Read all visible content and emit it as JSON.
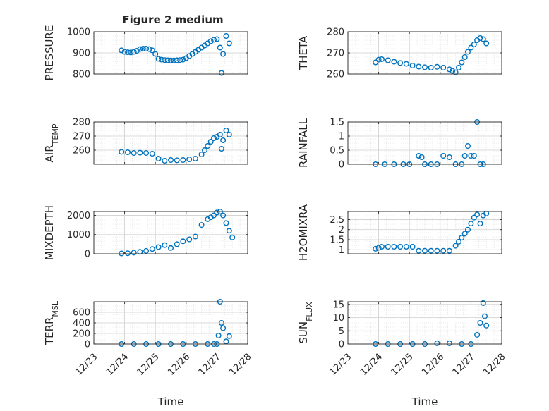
{
  "figure": {
    "title": "Figure 2 medium",
    "xlabel_left": "Time",
    "xlabel_right": "Time",
    "marker_color": "#0072BD",
    "x_tick_labels": [
      "12/23",
      "12/24",
      "12/25",
      "12/26",
      "12/27",
      "12/28"
    ]
  },
  "chart_data": [
    {
      "id": "pressure",
      "type": "scatter",
      "ylabel": "PRESSURE",
      "ylim": [
        800,
        1000
      ],
      "yticks": [
        800,
        900,
        1000
      ],
      "x": [
        23.9,
        24.0,
        24.1,
        24.2,
        24.3,
        24.4,
        24.5,
        24.6,
        24.7,
        24.8,
        24.9,
        25.0,
        25.1,
        25.2,
        25.3,
        25.4,
        25.5,
        25.6,
        25.7,
        25.8,
        25.9,
        26.0,
        26.1,
        26.2,
        26.3,
        26.4,
        26.5,
        26.6,
        26.7,
        26.8,
        26.9,
        27.0,
        27.1,
        27.15,
        27.2,
        27.3,
        27.4
      ],
      "y": [
        912,
        905,
        903,
        902,
        905,
        910,
        918,
        920,
        920,
        918,
        912,
        895,
        872,
        868,
        866,
        865,
        864,
        864,
        865,
        866,
        868,
        875,
        885,
        895,
        905,
        915,
        925,
        935,
        945,
        955,
        962,
        965,
        925,
        805,
        895,
        980,
        945
      ]
    },
    {
      "id": "theta",
      "type": "scatter",
      "ylabel": "THETA",
      "ylim": [
        260,
        280
      ],
      "yticks": [
        260,
        270,
        280
      ],
      "x": [
        23.9,
        24.0,
        24.1,
        24.3,
        24.5,
        24.7,
        24.9,
        25.1,
        25.3,
        25.5,
        25.7,
        25.9,
        26.1,
        26.3,
        26.4,
        26.5,
        26.6,
        26.7,
        26.8,
        26.9,
        27.0,
        27.1,
        27.2,
        27.3,
        27.4,
        27.5
      ],
      "y": [
        265.5,
        266.8,
        267.0,
        266.5,
        265.8,
        265.2,
        264.8,
        264.0,
        263.5,
        263.2,
        263.0,
        263.4,
        263.0,
        262.2,
        261.5,
        260.8,
        263.0,
        265.5,
        268.0,
        270.5,
        272.5,
        274.0,
        276.0,
        277.0,
        276.5,
        274.5
      ]
    },
    {
      "id": "air_temp",
      "type": "scatter",
      "ylabel": "AIR_TEMP",
      "ylim": [
        250,
        280
      ],
      "yticks": [
        260,
        270,
        280
      ],
      "x": [
        23.9,
        24.1,
        24.3,
        24.5,
        24.7,
        24.9,
        25.1,
        25.3,
        25.5,
        25.7,
        25.9,
        26.1,
        26.3,
        26.5,
        26.6,
        26.7,
        26.8,
        26.9,
        27.0,
        27.1,
        27.15,
        27.2,
        27.3,
        27.4
      ],
      "y": [
        258.8,
        258.5,
        258.0,
        258.2,
        258.0,
        257.5,
        254.0,
        252.5,
        253.0,
        252.8,
        253.0,
        253.5,
        254.0,
        257.0,
        260.0,
        263.0,
        266.0,
        268.5,
        269.5,
        271.0,
        261.0,
        267.0,
        274.0,
        271.0
      ]
    },
    {
      "id": "rainfall",
      "type": "scatter",
      "ylabel": "RAINFALL",
      "ylim": [
        0,
        1.5
      ],
      "yticks": [
        0,
        0.5,
        1,
        1.5
      ],
      "x": [
        23.9,
        24.2,
        24.5,
        24.8,
        25.0,
        25.3,
        25.4,
        25.5,
        25.7,
        25.9,
        26.1,
        26.3,
        26.5,
        26.7,
        26.8,
        26.9,
        27.0,
        27.1,
        27.2,
        27.3,
        27.4
      ],
      "y": [
        0,
        0,
        0,
        0,
        0,
        0.3,
        0.25,
        0,
        0,
        0,
        0.3,
        0.25,
        0,
        0,
        0.3,
        0.65,
        0.3,
        0.3,
        1.5,
        0,
        0
      ]
    },
    {
      "id": "mixdepth",
      "type": "scatter",
      "ylabel": "MIXDEPTH",
      "ylim": [
        0,
        2200
      ],
      "yticks": [
        0,
        1000,
        2000
      ],
      "x": [
        23.9,
        24.1,
        24.3,
        24.5,
        24.7,
        24.9,
        25.1,
        25.3,
        25.5,
        25.7,
        25.9,
        26.1,
        26.3,
        26.5,
        26.7,
        26.8,
        26.9,
        27.0,
        27.1,
        27.2,
        27.3,
        27.4,
        27.5
      ],
      "y": [
        20,
        30,
        60,
        100,
        150,
        250,
        350,
        450,
        300,
        500,
        650,
        750,
        900,
        1500,
        1800,
        1900,
        2000,
        2150,
        2200,
        2000,
        1600,
        1200,
        850
      ]
    },
    {
      "id": "h2omixra",
      "type": "scatter",
      "ylabel": "H2OMIXRA",
      "ylim": [
        0.8,
        2.9
      ],
      "yticks": [
        1,
        1.5,
        2,
        2.5
      ],
      "x": [
        23.9,
        24.0,
        24.1,
        24.3,
        24.5,
        24.7,
        24.9,
        25.1,
        25.3,
        25.5,
        25.7,
        25.9,
        26.1,
        26.3,
        26.5,
        26.6,
        26.7,
        26.8,
        26.9,
        27.0,
        27.1,
        27.2,
        27.3,
        27.4,
        27.5
      ],
      "y": [
        1.05,
        1.1,
        1.15,
        1.15,
        1.15,
        1.15,
        1.15,
        1.15,
        0.95,
        0.95,
        0.95,
        0.95,
        0.95,
        0.95,
        1.2,
        1.4,
        1.6,
        1.8,
        2.0,
        2.3,
        2.6,
        2.75,
        2.3,
        2.7,
        2.8
      ]
    },
    {
      "id": "terr_msl",
      "type": "scatter",
      "ylabel": "TERR_MSL",
      "ylim": [
        0,
        800
      ],
      "yticks": [
        0,
        200,
        400,
        600
      ],
      "x": [
        23.9,
        24.3,
        24.7,
        25.1,
        25.5,
        25.9,
        26.3,
        26.7,
        26.9,
        27.0,
        27.05,
        27.1,
        27.15,
        27.2,
        27.3,
        27.4
      ],
      "y": [
        0,
        0,
        0,
        0,
        0,
        0,
        0,
        0,
        0,
        0,
        160,
        800,
        400,
        300,
        50,
        150
      ]
    },
    {
      "id": "sun_flux",
      "type": "scatter",
      "ylabel": "SUN_FLUX",
      "ylim": [
        0,
        16
      ],
      "yticks": [
        0,
        5,
        10,
        15
      ],
      "x": [
        23.9,
        24.3,
        24.7,
        25.1,
        25.5,
        25.9,
        26.3,
        26.7,
        27.0,
        27.2,
        27.3,
        27.4,
        27.45,
        27.5
      ],
      "y": [
        0,
        0,
        0,
        0,
        0,
        0.3,
        0.3,
        0,
        0,
        3.5,
        8,
        15.5,
        10.5,
        7
      ]
    }
  ]
}
